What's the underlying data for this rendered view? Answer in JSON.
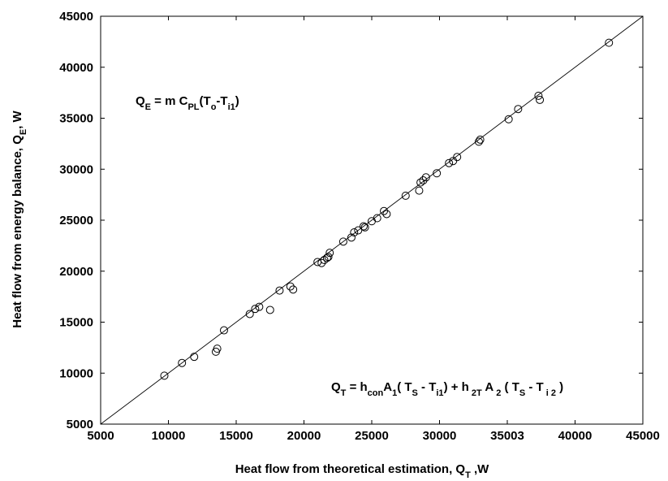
{
  "chart_data": {
    "type": "scatter",
    "title": "",
    "xlabel": {
      "text": "Heat flow from theoretical estimation, Q",
      "sub": "T",
      "after": " ,W"
    },
    "ylabel": {
      "text": "Heat flow from energy balance, Q",
      "sub": "E",
      "after": ", W"
    },
    "xlim": [
      5000,
      45000
    ],
    "ylim": [
      5000,
      45000
    ],
    "xticks": [
      "5000",
      "10000",
      "15000",
      "20000",
      "25000",
      "30000",
      "35003",
      "40000",
      "45000"
    ],
    "yticks": [
      "5000",
      "10000",
      "15000",
      "20000",
      "25000",
      "30000",
      "35000",
      "40000",
      "45000"
    ],
    "grid": false,
    "legend": "none",
    "reference_line": {
      "type": "y=x",
      "from": [
        5000,
        5000
      ],
      "to": [
        45000,
        45000
      ]
    },
    "annotations": {
      "qe": [
        {
          "t": "Q",
          "s": null
        },
        {
          "t": "E",
          "s": "sub"
        },
        {
          "t": " = m C",
          "s": null
        },
        {
          "t": "PL",
          "s": "sub"
        },
        {
          "t": "(T",
          "s": null
        },
        {
          "t": "o",
          "s": "sub"
        },
        {
          "t": "-T",
          "s": null
        },
        {
          "t": "i1",
          "s": "sub"
        },
        {
          "t": ")",
          "s": null
        }
      ],
      "qt": [
        {
          "t": "Q",
          "s": null
        },
        {
          "t": "T",
          "s": "sub"
        },
        {
          "t": " = h",
          "s": null
        },
        {
          "t": "con",
          "s": "sub"
        },
        {
          "t": "A",
          "s": null
        },
        {
          "t": "1",
          "s": "sub"
        },
        {
          "t": "( T",
          "s": null
        },
        {
          "t": "S",
          "s": "sub"
        },
        {
          "t": " - T",
          "s": null
        },
        {
          "t": "i1",
          "s": "sub"
        },
        {
          "t": ") + h",
          "s": null
        },
        {
          "t": " 2T",
          "s": "sub"
        },
        {
          "t": " A",
          "s": null
        },
        {
          "t": " 2",
          "s": "sub"
        },
        {
          "t": " ( T",
          "s": null
        },
        {
          "t": "S",
          "s": "sub"
        },
        {
          "t": " - T",
          "s": null
        },
        {
          "t": " i 2",
          "s": "sub"
        },
        {
          "t": " )",
          "s": null
        }
      ]
    },
    "points": [
      {
        "x": 9700,
        "y": 9750
      },
      {
        "x": 11000,
        "y": 11000
      },
      {
        "x": 11900,
        "y": 11600
      },
      {
        "x": 13500,
        "y": 12100
      },
      {
        "x": 13600,
        "y": 12400
      },
      {
        "x": 14100,
        "y": 14200
      },
      {
        "x": 16000,
        "y": 15800
      },
      {
        "x": 16400,
        "y": 16300
      },
      {
        "x": 16700,
        "y": 16500
      },
      {
        "x": 17500,
        "y": 16200
      },
      {
        "x": 18200,
        "y": 18100
      },
      {
        "x": 19000,
        "y": 18500
      },
      {
        "x": 19200,
        "y": 18200
      },
      {
        "x": 21000,
        "y": 20900
      },
      {
        "x": 21300,
        "y": 20800
      },
      {
        "x": 21500,
        "y": 21100
      },
      {
        "x": 21700,
        "y": 21300
      },
      {
        "x": 21800,
        "y": 21400
      },
      {
        "x": 21900,
        "y": 21800
      },
      {
        "x": 22900,
        "y": 22900
      },
      {
        "x": 23500,
        "y": 23300
      },
      {
        "x": 23700,
        "y": 23800
      },
      {
        "x": 24000,
        "y": 24000
      },
      {
        "x": 24400,
        "y": 24400
      },
      {
        "x": 24500,
        "y": 24300
      },
      {
        "x": 25000,
        "y": 24900
      },
      {
        "x": 25400,
        "y": 25200
      },
      {
        "x": 25900,
        "y": 25900
      },
      {
        "x": 26100,
        "y": 25600
      },
      {
        "x": 27500,
        "y": 27400
      },
      {
        "x": 28500,
        "y": 27900
      },
      {
        "x": 28600,
        "y": 28700
      },
      {
        "x": 28800,
        "y": 28900
      },
      {
        "x": 29000,
        "y": 29200
      },
      {
        "x": 29800,
        "y": 29600
      },
      {
        "x": 30700,
        "y": 30600
      },
      {
        "x": 31000,
        "y": 30800
      },
      {
        "x": 31300,
        "y": 31200
      },
      {
        "x": 32900,
        "y": 32700
      },
      {
        "x": 33000,
        "y": 32900
      },
      {
        "x": 35100,
        "y": 34900
      },
      {
        "x": 35800,
        "y": 35900
      },
      {
        "x": 37300,
        "y": 37200
      },
      {
        "x": 37400,
        "y": 36800
      },
      {
        "x": 42500,
        "y": 42400
      }
    ]
  }
}
